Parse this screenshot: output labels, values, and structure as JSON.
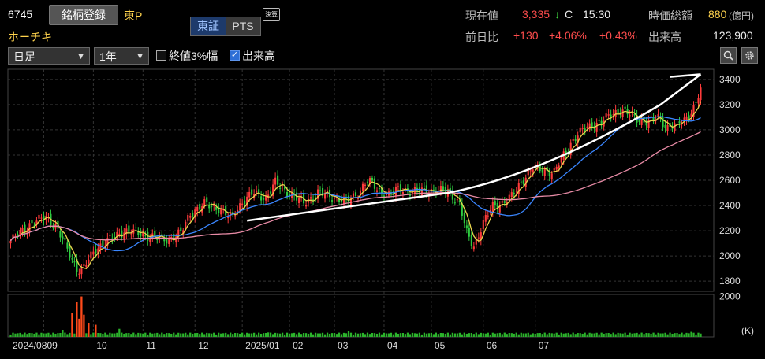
{
  "header": {
    "code": "6745",
    "register_label": "銘柄登録",
    "market": "東P",
    "name": "ホーチキ",
    "exchange_tabs": [
      "東証",
      "PTS"
    ],
    "kessan_badge": "決算",
    "current_price_label": "現在値",
    "current_price": "3,335",
    "price_arrow": "↓",
    "price_flag": "C",
    "time": "15:30",
    "market_cap_label": "時価総額",
    "market_cap_value": "880",
    "market_cap_unit": "(億円)",
    "change_label": "前日比",
    "change_abs": "+130",
    "change_pct": "+4.06%",
    "change_extra": "+0.43%",
    "volume_label": "出来高",
    "volume_value": "123,900"
  },
  "controls": {
    "period_type": "日足",
    "range": "1年",
    "opt_3pct_label": "終値3%幅",
    "opt_volume_label": "出来高"
  },
  "colors": {
    "up": "#ff3b3b",
    "down": "#2ecc40",
    "ma_short": "#e8d44d",
    "ma_mid": "#3a86ff",
    "ma_long": "#e88ba6",
    "trendline": "#ffffff",
    "volume": "#2bb32b",
    "volume_high": "#ff4a1a"
  },
  "chart_data": [
    {
      "type": "candlestick",
      "title": "",
      "y_ticks": [
        1800,
        2000,
        2200,
        2400,
        2600,
        2800,
        3000,
        3200,
        3400
      ],
      "ylim": [
        1720,
        3480
      ],
      "x_labels": [
        "2024/08",
        "09",
        "10",
        "11",
        "12",
        "2025/01",
        "02",
        "03",
        "04",
        "05",
        "06",
        "07"
      ],
      "close_anchors": [
        [
          0,
          2120
        ],
        [
          8,
          2250
        ],
        [
          15,
          2310
        ],
        [
          19,
          2240
        ],
        [
          24,
          2050
        ],
        [
          28,
          1900
        ],
        [
          30,
          1880
        ],
        [
          36,
          2060
        ],
        [
          42,
          2130
        ],
        [
          48,
          2200
        ],
        [
          54,
          2180
        ],
        [
          60,
          2150
        ],
        [
          66,
          2130
        ],
        [
          72,
          2180
        ],
        [
          76,
          2340
        ],
        [
          82,
          2410
        ],
        [
          88,
          2380
        ],
        [
          93,
          2300
        ],
        [
          98,
          2430
        ],
        [
          103,
          2500
        ],
        [
          108,
          2460
        ],
        [
          112,
          2580
        ],
        [
          116,
          2520
        ],
        [
          120,
          2470
        ],
        [
          124,
          2420
        ],
        [
          130,
          2500
        ],
        [
          136,
          2470
        ],
        [
          142,
          2430
        ],
        [
          147,
          2500
        ],
        [
          151,
          2600
        ],
        [
          156,
          2520
        ],
        [
          160,
          2480
        ],
        [
          165,
          2540
        ],
        [
          170,
          2500
        ],
        [
          175,
          2530
        ],
        [
          180,
          2510
        ],
        [
          185,
          2520
        ],
        [
          190,
          2410
        ],
        [
          193,
          2180
        ],
        [
          196,
          2080
        ],
        [
          200,
          2260
        ],
        [
          204,
          2400
        ],
        [
          208,
          2420
        ],
        [
          212,
          2470
        ],
        [
          216,
          2590
        ],
        [
          221,
          2700
        ],
        [
          226,
          2680
        ],
        [
          230,
          2660
        ],
        [
          234,
          2800
        ],
        [
          238,
          2920
        ],
        [
          242,
          3000
        ],
        [
          246,
          3040
        ],
        [
          250,
          3060
        ],
        [
          254,
          3120
        ],
        [
          258,
          3160
        ],
        [
          262,
          3120
        ],
        [
          266,
          3080
        ],
        [
          270,
          3060
        ],
        [
          274,
          3100
        ],
        [
          278,
          3020
        ],
        [
          282,
          3040
        ],
        [
          286,
          3100
        ],
        [
          290,
          3200
        ],
        [
          292,
          3335
        ]
      ],
      "moving_averages": [
        "short",
        "mid",
        "long"
      ]
    },
    {
      "type": "bar",
      "title": "",
      "y_ticks": [
        2000
      ],
      "unit": "(K)",
      "volume_spikes": [
        [
          22,
          350
        ],
        [
          26,
          1200
        ],
        [
          28,
          1750
        ],
        [
          29,
          900
        ],
        [
          30,
          2000
        ],
        [
          31,
          1100
        ],
        [
          33,
          700
        ],
        [
          36,
          600
        ],
        [
          46,
          400
        ],
        [
          109,
          220
        ],
        [
          143,
          300
        ],
        [
          221,
          180
        ],
        [
          288,
          250
        ]
      ],
      "volume_base": 120
    }
  ]
}
